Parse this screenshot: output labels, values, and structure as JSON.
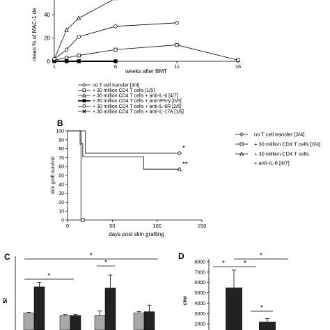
{
  "chart_data": [
    {
      "panel": "A",
      "type": "line",
      "title": "",
      "xlabel": "weeks after BMT",
      "ylabel": "mean % of MAC-1 de",
      "x": [
        1,
        2,
        3,
        6,
        11,
        16
      ],
      "xticks": [
        1,
        6,
        11,
        16
      ],
      "yticks": [
        0,
        20,
        40
      ],
      "ylim": [
        0,
        55
      ],
      "xlim": [
        1,
        16
      ],
      "legend_position": "bottom",
      "series": [
        {
          "name": "no T cell transfer [3/4]",
          "marker": "diamond",
          "values": [
            0,
            0,
            0,
            0,
            null,
            null
          ]
        },
        {
          "name": "+ 30 million CD4 T cells [1/5]",
          "marker": "square",
          "values": [
            1,
            3,
            5,
            10,
            14,
            1
          ]
        },
        {
          "name": "+ 30 million CD4 T cells + anti-IL-6 [4/7]",
          "marker": "triangle",
          "values": [
            2,
            27,
            37,
            54,
            null,
            null
          ]
        },
        {
          "name": "+ 30 million CD4 T cells + anti-IFN-y [0/5]",
          "marker": "filled-square",
          "values": [
            0,
            0,
            0,
            0,
            null,
            null
          ]
        },
        {
          "name": "+ 30 million CD4 T cells + anti-IL-6R [2/6]",
          "marker": "circle",
          "values": [
            2,
            10,
            21,
            30,
            33,
            null
          ]
        },
        {
          "name": "+ 30 million CD4 T cells + anti-IL-17A [1/6]",
          "marker": "x",
          "values": [
            0,
            0,
            0,
            null,
            null,
            null
          ]
        }
      ]
    },
    {
      "panel": "B",
      "type": "line",
      "title": "",
      "xlabel": "days post skin grafting",
      "ylabel": "skin graft survival",
      "xticks": [
        0,
        50,
        100,
        150
      ],
      "yticks": [
        0,
        10,
        20,
        30,
        40,
        50,
        60,
        70,
        80,
        90,
        100
      ],
      "xlim": [
        0,
        150
      ],
      "ylim": [
        0,
        100
      ],
      "legend_position": "right",
      "series": [
        {
          "name": "no T cell transfer [3/4]",
          "marker": "diamond",
          "points": [
            [
              0,
              100
            ],
            [
              20,
              100
            ],
            [
              20,
              75
            ],
            [
              125,
              75
            ]
          ],
          "annotation": "*"
        },
        {
          "name": "+ 30 million CD4 T cells [0/4]",
          "marker": "square",
          "points": [
            [
              0,
              100
            ],
            [
              14,
              100
            ],
            [
              14,
              85
            ],
            [
              15,
              85
            ],
            [
              15,
              0
            ],
            [
              17,
              0
            ]
          ]
        },
        {
          "name": "+ 30 million CD4 T cells + anti-IL-6 [4/7]",
          "legend_lines": [
            "+ 30 million CD4 T cells",
            "+ anti-IL-6 [4/7]"
          ],
          "marker": "triangle",
          "points": [
            [
              0,
              100
            ],
            [
              15,
              100
            ],
            [
              15,
              86
            ],
            [
              17,
              86
            ],
            [
              17,
              71
            ],
            [
              85,
              71
            ],
            [
              85,
              57
            ],
            [
              125,
              57
            ]
          ],
          "annotation": "**"
        }
      ]
    },
    {
      "panel": "C",
      "type": "bar",
      "ylabel": "SI",
      "ylim": [
        0,
        5
      ],
      "bar_colors": [
        "#a8a8a8",
        "#222222"
      ],
      "groups": [
        {
          "values": [
            1.3,
            3.3
          ],
          "errors": [
            0.05,
            0.35
          ]
        },
        {
          "values": [
            1.1,
            1.1
          ],
          "errors": [
            0.1,
            0.1
          ]
        },
        {
          "values": [
            1.1,
            3.2
          ],
          "errors": [
            0.35,
            1.0
          ]
        },
        {
          "values": [
            1.3,
            1.4
          ],
          "errors": [
            0.1,
            0.5
          ]
        }
      ],
      "significance": [
        {
          "label": "*",
          "from_group": 0,
          "to_group": 1
        },
        {
          "label": "*",
          "from_group": 2,
          "to_group": 2
        },
        {
          "label": "*",
          "from_group": 0,
          "to_group": 3
        }
      ]
    },
    {
      "panel": "D",
      "type": "bar",
      "ylabel": "CPM",
      "yticks": [
        2000,
        3000,
        4000,
        5000,
        6000,
        7000,
        8000
      ],
      "ylim": [
        1000,
        8000
      ],
      "bar_colors": [
        "#222222"
      ],
      "categories": [
        "",
        ""
      ],
      "values": [
        5500,
        2200
      ],
      "errors": [
        1700,
        300
      ],
      "significance": [
        {
          "label": "*",
          "from_x": 0,
          "to_x": 0.55
        },
        {
          "label": "*",
          "from_x": 0.55,
          "to_x": 1.15
        },
        {
          "label": "*",
          "from_x": 0.55,
          "to_x": 1.75
        },
        {
          "label": "*",
          "from_x": 0.85,
          "to_x": 1.35
        }
      ]
    }
  ]
}
